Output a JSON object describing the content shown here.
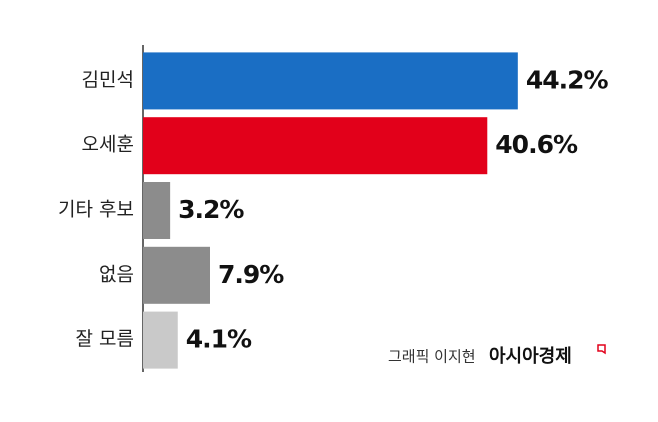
{
  "chart_data": {
    "type": "hbar",
    "categories": [
      "김민석",
      "오세훈",
      "기타 후보",
      "없음",
      "잘 모름"
    ],
    "values": [
      44.2,
      40.6,
      3.2,
      7.9,
      4.1
    ],
    "value_labels": [
      "44.2%",
      "40.6%",
      "3.2%",
      "7.9%",
      "4.1%"
    ],
    "colors": [
      "#1a6ec4",
      "#e2001a",
      "#8c8c8c",
      "#8c8c8c",
      "#c9c9c9"
    ],
    "xlim": [
      0,
      50
    ]
  },
  "credit": {
    "author": "그래픽 이지현",
    "publisher": "아시아경제"
  }
}
